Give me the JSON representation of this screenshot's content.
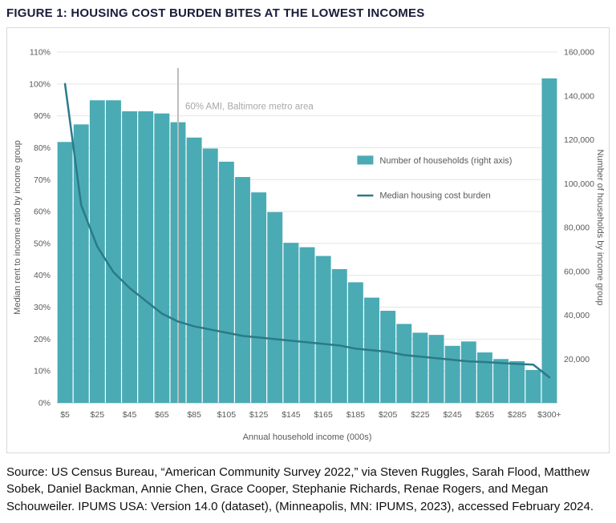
{
  "figure": {
    "title": "FIGURE 1: HOUSING COST BURDEN BITES AT THE LOWEST INCOMES",
    "source": "Source: US Census Bureau, “American Community Survey 2022,” via Steven Ruggles, Sarah Flood, Matthew Sobek, Daniel Backman, Annie Chen, Grace Cooper, Stephanie Richards, Renae Rogers, and Megan Schouweiler. IPUMS USA: Version 14.0 (dataset), (Minneapolis, MN: IPUMS, 2023), accessed February 2024."
  },
  "chart_data": {
    "type": "bar",
    "combo": "bar+line",
    "categories": [
      "$5",
      "$15",
      "$25",
      "$35",
      "$45",
      "$55",
      "$65",
      "$75",
      "$85",
      "$95",
      "$105",
      "$115",
      "$125",
      "$135",
      "$145",
      "$155",
      "$165",
      "$175",
      "$185",
      "$195",
      "$205",
      "$215",
      "$225",
      "$235",
      "$245",
      "$255",
      "$265",
      "$275",
      "$285",
      "$295",
      "$300+"
    ],
    "x_tick_labels_shown": [
      "$5",
      "$25",
      "$45",
      "$65",
      "$85",
      "$105",
      "$125",
      "$145",
      "$165",
      "$185",
      "$205",
      "$225",
      "$245",
      "$265",
      "$285",
      "$300+"
    ],
    "series": [
      {
        "name": "Number of households (right axis)",
        "type": "bar",
        "axis": "right",
        "color": "#4aabb4",
        "values": [
          119000,
          127000,
          138000,
          138000,
          133000,
          133000,
          132000,
          128000,
          121000,
          116000,
          110000,
          103000,
          96000,
          87000,
          73000,
          71000,
          67000,
          61000,
          55000,
          48000,
          42000,
          36000,
          32000,
          31000,
          26000,
          28000,
          23000,
          20000,
          19000,
          15000,
          148000
        ]
      },
      {
        "name": "Median housing cost burden",
        "type": "line",
        "axis": "left",
        "color": "#2b7a8a",
        "values": [
          100,
          62,
          49,
          41,
          36,
          32,
          28,
          25.5,
          24,
          23,
          22,
          21,
          20.5,
          20,
          19.5,
          19,
          18.5,
          18,
          17,
          16.5,
          16,
          15,
          14.5,
          14,
          13.5,
          13,
          12.8,
          12.5,
          12.2,
          12,
          8
        ]
      }
    ],
    "left_axis": {
      "label": "Median rent to income ratio by income group",
      "min": 0,
      "max": 110,
      "tick_step": 10,
      "format": "percent",
      "tick_labels": [
        "0%",
        "10%",
        "20%",
        "30%",
        "40%",
        "50%",
        "60%",
        "70%",
        "80%",
        "90%",
        "100%",
        "110%"
      ]
    },
    "right_axis": {
      "label": "Number of households by income group",
      "min": 0,
      "max": 160000,
      "tick_step": 20000,
      "tick_labels": [
        "20,000",
        "40,000",
        "60,000",
        "80,000",
        "100,000",
        "120,000",
        "140,000",
        "160,000"
      ]
    },
    "xlabel": "Annual household income (000s)",
    "annotation": {
      "text": "60% AMI, Baltimore metro area",
      "x_category": "$75",
      "line_color": "#bdbdbd",
      "text_color": "#a8a8a8"
    },
    "legend": {
      "position": "inside-right",
      "items": [
        "Number of households (right axis)",
        "Median housing cost burden"
      ]
    },
    "grid": "horizontal",
    "colors": {
      "bar": "#4aabb4",
      "line": "#2b7a8a",
      "gridline": "#e4e4e4",
      "baseline": "#c2c2c2",
      "frame_border": "#d9d9d9"
    }
  }
}
